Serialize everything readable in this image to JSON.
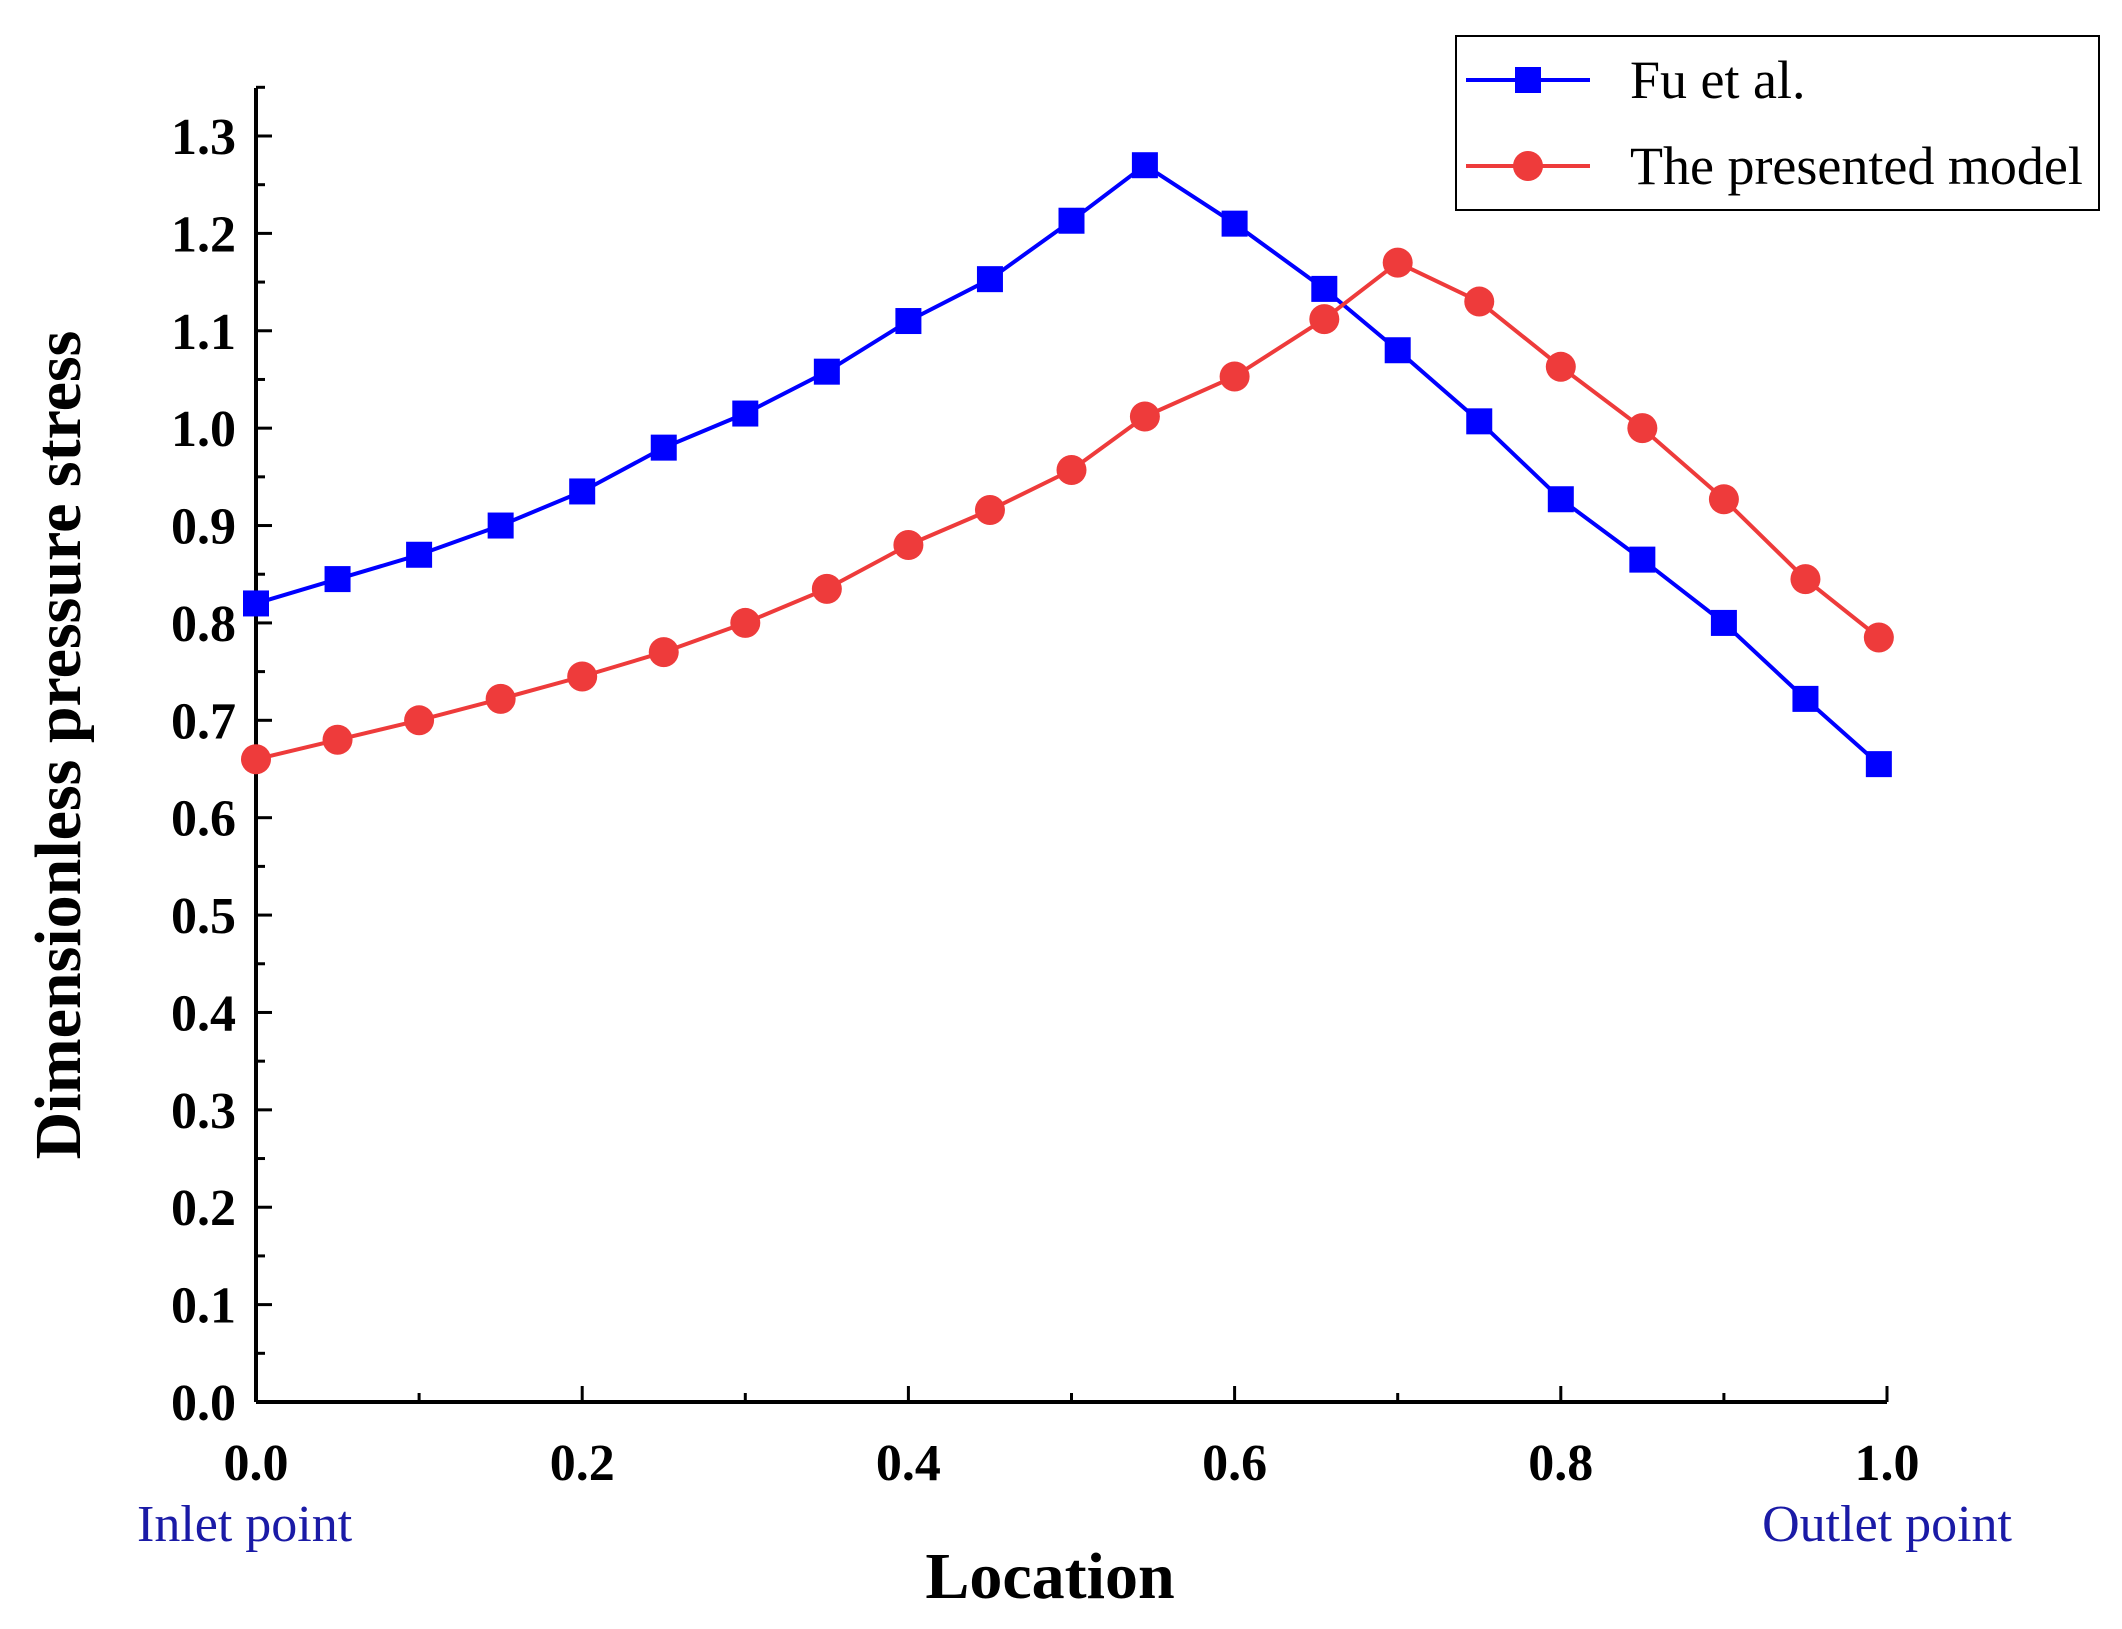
{
  "chart_data": {
    "type": "line",
    "title": "",
    "xlabel": "Location",
    "ylabel": "Dimensionless pressure stress",
    "xlim": [
      0,
      1
    ],
    "ylim": [
      0,
      1.3
    ],
    "xticks": [
      0.0,
      0.2,
      0.4,
      0.6,
      0.8,
      1.0
    ],
    "xtick_labels": [
      "0.0",
      "0.2",
      "0.4",
      "0.6",
      "0.8",
      "1.0"
    ],
    "yticks": [
      0.0,
      0.1,
      0.2,
      0.3,
      0.4,
      0.5,
      0.6,
      0.7,
      0.8,
      0.9,
      1.0,
      1.1,
      1.2,
      1.3
    ],
    "ytick_labels": [
      "0.0",
      "0.1",
      "0.2",
      "0.3",
      "0.4",
      "0.5",
      "0.6",
      "0.7",
      "0.8",
      "0.9",
      "1.0",
      "1.1",
      "1.2",
      "1.3"
    ],
    "grid": false,
    "legend_position": "top-right",
    "annotations": {
      "inlet": "Inlet point",
      "outlet": "Outlet point"
    },
    "series": [
      {
        "name": "Fu et al.",
        "color": "#0000ff",
        "marker": "square",
        "x": [
          0.0,
          0.05,
          0.1,
          0.15,
          0.2,
          0.25,
          0.3,
          0.35,
          0.4,
          0.45,
          0.5,
          0.545,
          0.6,
          0.655,
          0.7,
          0.75,
          0.8,
          0.85,
          0.9,
          0.95,
          0.995
        ],
        "y": [
          0.82,
          0.845,
          0.87,
          0.9,
          0.935,
          0.98,
          1.015,
          1.058,
          1.11,
          1.153,
          1.213,
          1.27,
          1.21,
          1.143,
          1.08,
          1.007,
          0.927,
          0.865,
          0.8,
          0.722,
          0.655
        ]
      },
      {
        "name": "The presented model",
        "color": "#ee3b3b",
        "marker": "circle",
        "x": [
          0.0,
          0.05,
          0.1,
          0.15,
          0.2,
          0.25,
          0.3,
          0.35,
          0.4,
          0.45,
          0.5,
          0.545,
          0.6,
          0.655,
          0.7,
          0.75,
          0.8,
          0.85,
          0.9,
          0.95,
          0.995
        ],
        "y": [
          0.66,
          0.68,
          0.7,
          0.722,
          0.745,
          0.77,
          0.8,
          0.835,
          0.88,
          0.916,
          0.957,
          1.012,
          1.053,
          1.112,
          1.17,
          1.13,
          1.063,
          1.0,
          0.927,
          0.845,
          0.785
        ]
      }
    ]
  }
}
